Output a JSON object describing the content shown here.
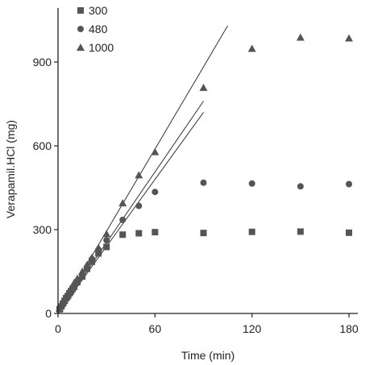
{
  "chart_data": {
    "type": "scatter",
    "title": "",
    "xlabel": "Time (min)",
    "ylabel": "Verapamil.HCl (mg)",
    "xlim": [
      0,
      205
    ],
    "ylim": [
      0,
      1100
    ],
    "x_ticks": [
      0,
      60,
      120,
      180
    ],
    "y_ticks": [
      0,
      300,
      600,
      900
    ],
    "legend_position": "top-left",
    "series": [
      {
        "name": "300",
        "marker": "square",
        "color": "#555555",
        "x": [
          1,
          2,
          3,
          4,
          5,
          6,
          7,
          8,
          9,
          10,
          12,
          15,
          18,
          21,
          25,
          30,
          40,
          50,
          60,
          90,
          120,
          150,
          180
        ],
        "y": [
          15,
          25,
          35,
          45,
          55,
          62,
          72,
          80,
          88,
          95,
          112,
          132,
          160,
          185,
          215,
          238,
          282,
          287,
          291,
          288,
          292,
          293,
          289
        ]
      },
      {
        "name": "480",
        "marker": "circle",
        "color": "#555555",
        "x": [
          1,
          2,
          3,
          4,
          5,
          6,
          7,
          8,
          9,
          10,
          12,
          15,
          18,
          21,
          25,
          30,
          40,
          50,
          60,
          90,
          120,
          150,
          180
        ],
        "y": [
          15,
          25,
          35,
          44,
          52,
          60,
          68,
          75,
          85,
          95,
          115,
          135,
          160,
          195,
          228,
          262,
          335,
          385,
          435,
          468,
          465,
          455,
          463
        ]
      },
      {
        "name": "1000",
        "marker": "triangle",
        "color": "#555555",
        "x": [
          1,
          2,
          3,
          4,
          5,
          6,
          7,
          8,
          9,
          10,
          12,
          15,
          18,
          21,
          25,
          30,
          40,
          50,
          60,
          90,
          120,
          150,
          180
        ],
        "y": [
          18,
          30,
          40,
          48,
          58,
          65,
          75,
          85,
          95,
          110,
          125,
          150,
          175,
          200,
          235,
          285,
          395,
          495,
          578,
          808,
          948,
          988,
          985
        ]
      }
    ],
    "fit_lines": [
      {
        "x": [
          0,
          105
        ],
        "y": [
          0,
          1030
        ]
      },
      {
        "x": [
          0,
          90
        ],
        "y": [
          0,
          760
        ]
      },
      {
        "x": [
          0,
          90
        ],
        "y": [
          0,
          720
        ]
      }
    ]
  }
}
